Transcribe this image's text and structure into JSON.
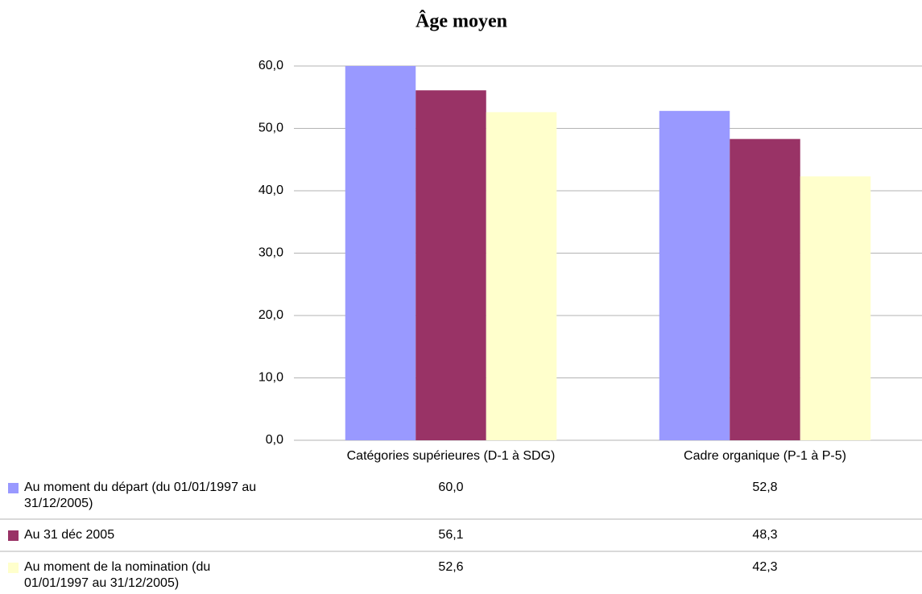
{
  "chart_data": {
    "type": "bar",
    "title": "Âge moyen",
    "categories": [
      "Catégories supérieures (D-1 à SDG)",
      "Cadre organique (P-1 à P-5)"
    ],
    "series": [
      {
        "name": "Au moment du départ (du 01/01/1997 au 31/12/2005)",
        "color": "#9999ff",
        "values": [
          60.0,
          52.8
        ],
        "value_labels": [
          "60,0",
          "52,8"
        ]
      },
      {
        "name": "Au 31 déc 2005",
        "color": "#993366",
        "values": [
          56.1,
          48.3
        ],
        "value_labels": [
          "56,1",
          "48,3"
        ]
      },
      {
        "name": "Au moment de la nomination (du 01/01/1997 au 31/12/2005)",
        "color": "#ffffcc",
        "values": [
          52.6,
          42.3
        ],
        "value_labels": [
          "52,6",
          "42,3"
        ]
      }
    ],
    "ylim": [
      0,
      60
    ],
    "yticks": [
      {
        "value": 0,
        "label": "0,0"
      },
      {
        "value": 10,
        "label": "10,0"
      },
      {
        "value": 20,
        "label": "20,0"
      },
      {
        "value": 30,
        "label": "30,0"
      },
      {
        "value": 40,
        "label": "40,0"
      },
      {
        "value": 50,
        "label": "50,0"
      },
      {
        "value": 60,
        "label": "60,0"
      }
    ],
    "grid": true
  }
}
